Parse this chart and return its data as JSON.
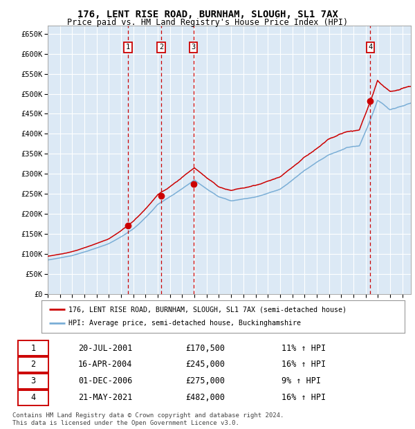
{
  "title": "176, LENT RISE ROAD, BURNHAM, SLOUGH, SL1 7AX",
  "subtitle": "Price paid vs. HM Land Registry's House Price Index (HPI)",
  "ylim": [
    0,
    670000
  ],
  "yticks": [
    0,
    50000,
    100000,
    150000,
    200000,
    250000,
    300000,
    350000,
    400000,
    450000,
    500000,
    550000,
    600000,
    650000
  ],
  "ytick_labels": [
    "£0",
    "£50K",
    "£100K",
    "£150K",
    "£200K",
    "£250K",
    "£300K",
    "£350K",
    "£400K",
    "£450K",
    "£500K",
    "£550K",
    "£600K",
    "£650K"
  ],
  "plot_bg_color": "#dce9f5",
  "grid_color": "#ffffff",
  "red_line_color": "#cc0000",
  "blue_line_color": "#7aaed6",
  "sale_dates": [
    2001.55,
    2004.29,
    2006.92,
    2021.38
  ],
  "sale_prices": [
    170500,
    245000,
    275000,
    482000
  ],
  "sale_labels": [
    "1",
    "2",
    "3",
    "4"
  ],
  "legend_label_red": "176, LENT RISE ROAD, BURNHAM, SLOUGH, SL1 7AX (semi-detached house)",
  "legend_label_blue": "HPI: Average price, semi-detached house, Buckinghamshire",
  "table_data": [
    [
      "1",
      "20-JUL-2001",
      "£170,500",
      "11% ↑ HPI"
    ],
    [
      "2",
      "16-APR-2004",
      "£245,000",
      "16% ↑ HPI"
    ],
    [
      "3",
      "01-DEC-2006",
      "£275,000",
      "9% ↑ HPI"
    ],
    [
      "4",
      "21-MAY-2021",
      "£482,000",
      "16% ↑ HPI"
    ]
  ],
  "footnote": "Contains HM Land Registry data © Crown copyright and database right 2024.\nThis data is licensed under the Open Government Licence v3.0.",
  "xmin": 1995,
  "xmax": 2024.7
}
